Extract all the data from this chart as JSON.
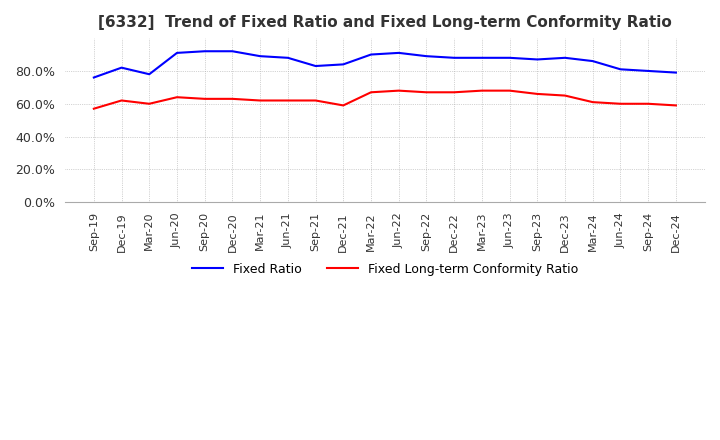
{
  "title": "[6332]  Trend of Fixed Ratio and Fixed Long-term Conformity Ratio",
  "x_labels": [
    "Sep-19",
    "Dec-19",
    "Mar-20",
    "Jun-20",
    "Sep-20",
    "Dec-20",
    "Mar-21",
    "Jun-21",
    "Sep-21",
    "Dec-21",
    "Mar-22",
    "Jun-22",
    "Sep-22",
    "Dec-22",
    "Mar-23",
    "Jun-23",
    "Sep-23",
    "Dec-23",
    "Mar-24",
    "Jun-24",
    "Sep-24",
    "Dec-24"
  ],
  "fixed_ratio": [
    76,
    82,
    78,
    91,
    92,
    92,
    89,
    88,
    83,
    84,
    90,
    91,
    89,
    88,
    88,
    88,
    87,
    88,
    86,
    81,
    80,
    79
  ],
  "fixed_lt_ratio": [
    57,
    62,
    60,
    64,
    63,
    63,
    62,
    62,
    62,
    59,
    67,
    68,
    67,
    67,
    68,
    68,
    66,
    65,
    61,
    60,
    60,
    59
  ],
  "fixed_ratio_color": "#0000FF",
  "fixed_lt_ratio_color": "#FF0000",
  "ylim": [
    0,
    100
  ],
  "yticks": [
    0,
    20,
    40,
    60,
    80
  ],
  "background_color": "#FFFFFF",
  "grid_color": "#AAAAAA"
}
